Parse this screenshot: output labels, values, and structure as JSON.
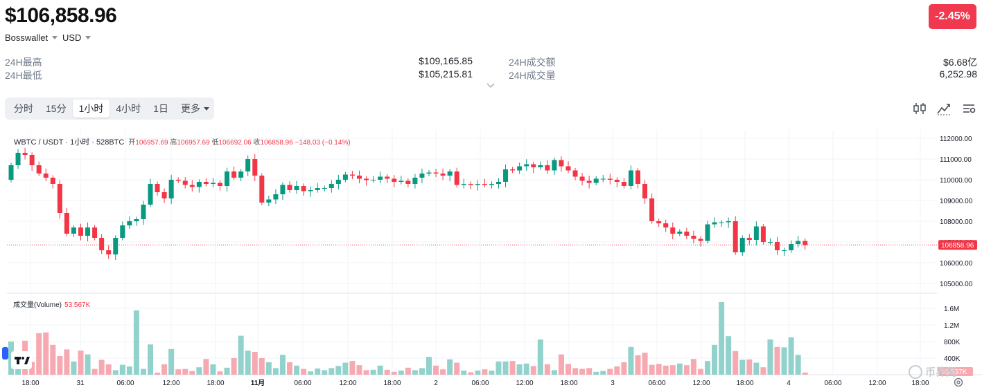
{
  "header": {
    "price": "$106,858.96",
    "change": "-2.45%",
    "exchange": "Bosswallet",
    "currency": "USD"
  },
  "stats": [
    {
      "label": "24H最高",
      "value": "$109,165.85"
    },
    {
      "label": "24H最低",
      "value": "$105,215.81"
    },
    {
      "label": "24H成交额",
      "value": "$6.68亿"
    },
    {
      "label": "24H成交量",
      "value": "6,252.98"
    }
  ],
  "tabs": [
    "分时",
    "15分",
    "1小时",
    "4小时",
    "1日",
    "更多"
  ],
  "active_tab": "1小时",
  "chart_legend": {
    "symbol": "WBTC / USDT · 1小时 · 528BTC",
    "open_label": "开",
    "open": "106957.69",
    "high_label": "高",
    "high": "106957.69",
    "low_label": "低",
    "low": "106692.06",
    "close_label": "收",
    "close": "106858.96",
    "change": "−148.03 (−0.14%)"
  },
  "volume_legend": {
    "label": "成交量(Volume)",
    "value": "53.567K"
  },
  "watermark": "币界网",
  "colors": {
    "up": "#089981",
    "down": "#f23645",
    "up_vol": "#92d2cc",
    "down_vol": "#f7a9b1",
    "badge": "#f0394f"
  },
  "chart_data": {
    "type": "candlestick",
    "price_axis": [
      112000,
      111000,
      110000,
      109000,
      108000,
      107000,
      106000,
      105000
    ],
    "price_axis_labels": [
      "112000.00",
      "111000.00",
      "110000.00",
      "109000.00",
      "108000.00",
      "107000.00",
      "106000.00",
      "105000.00"
    ],
    "last_price": 106858.96,
    "last_price_label": "106858.96",
    "volume_axis_labels": [
      "1.6M",
      "1.2M",
      "800K",
      "400K"
    ],
    "volume_axis_values": [
      1600000,
      1200000,
      800000,
      400000
    ],
    "last_volume_label": "53.567K",
    "time_labels": [
      "18:00",
      "31",
      "06:00",
      "12:00",
      "18:00",
      "11月",
      "06:00",
      "12:00",
      "18:00",
      "2",
      "06:00",
      "12:00",
      "18:00",
      "3",
      "06:00",
      "12:00",
      "18:00",
      "4",
      "06:00",
      "12:00",
      "18:00"
    ],
    "closes": [
      110700,
      111300,
      111200,
      110700,
      110300,
      110100,
      109800,
      108400,
      107400,
      107700,
      107300,
      107700,
      107200,
      106600,
      106400,
      107200,
      107800,
      108000,
      108100,
      108800,
      109800,
      109400,
      109100,
      110000,
      109950,
      109750,
      109650,
      109900,
      109800,
      109850,
      109700,
      110400,
      110100,
      110400,
      111000,
      110200,
      108900,
      109050,
      109300,
      109750,
      109500,
      109700,
      109450,
      109500,
      109600,
      109600,
      109800,
      110000,
      110250,
      110200,
      110050,
      109980,
      110000,
      110150,
      110050,
      109900,
      109950,
      109800,
      110100,
      110300,
      110350,
      110300,
      110200,
      110400,
      109750,
      109800,
      109750,
      109800,
      109750,
      109800,
      109900,
      110500,
      110450,
      110650,
      110750,
      110600,
      110700,
      110450,
      110950,
      110650,
      110450,
      110150,
      109950,
      109850,
      110050,
      110050,
      110000,
      109900,
      109700,
      110450,
      109800,
      109100,
      108000,
      107900,
      107700,
      107400,
      107500,
      107300,
      107150,
      107050,
      107850,
      107950,
      107950,
      108000,
      106500,
      107200,
      107100,
      107750,
      107000,
      107000,
      106600,
      106600,
      106900,
      107050,
      106850
    ],
    "volumes": [
      800000,
      380000,
      820000,
      310000,
      1000000,
      1020000,
      720000,
      450000,
      610000,
      320000,
      580000,
      490000,
      140000,
      360000,
      250000,
      110000,
      240000,
      200000,
      1550000,
      140000,
      730000,
      50000,
      250000,
      620000,
      130000,
      140000,
      90000,
      180000,
      380000,
      250000,
      80000,
      170000,
      400000,
      940000,
      580000,
      550000,
      400000,
      300000,
      160000,
      480000,
      300000,
      220000,
      140000,
      80000,
      150000,
      110000,
      160000,
      210000,
      290000,
      330000,
      230000,
      110000,
      120000,
      220000,
      120000,
      70000,
      100000,
      170000,
      110000,
      160000,
      430000,
      220000,
      130000,
      370000,
      290000,
      100000,
      60000,
      100000,
      130000,
      100000,
      320000,
      320000,
      330000,
      250000,
      270000,
      210000,
      850000,
      250000,
      110000,
      490000,
      260000,
      160000,
      140000,
      160000,
      70000,
      90000,
      140000,
      200000,
      300000,
      670000,
      470000,
      530000,
      240000,
      260000,
      220000,
      230000,
      270000,
      230000,
      380000,
      140000,
      330000,
      720000,
      1750000,
      930000,
      570000,
      360000,
      370000,
      290000,
      180000,
      850000,
      670000,
      660000,
      900000,
      480000,
      53567
    ]
  }
}
